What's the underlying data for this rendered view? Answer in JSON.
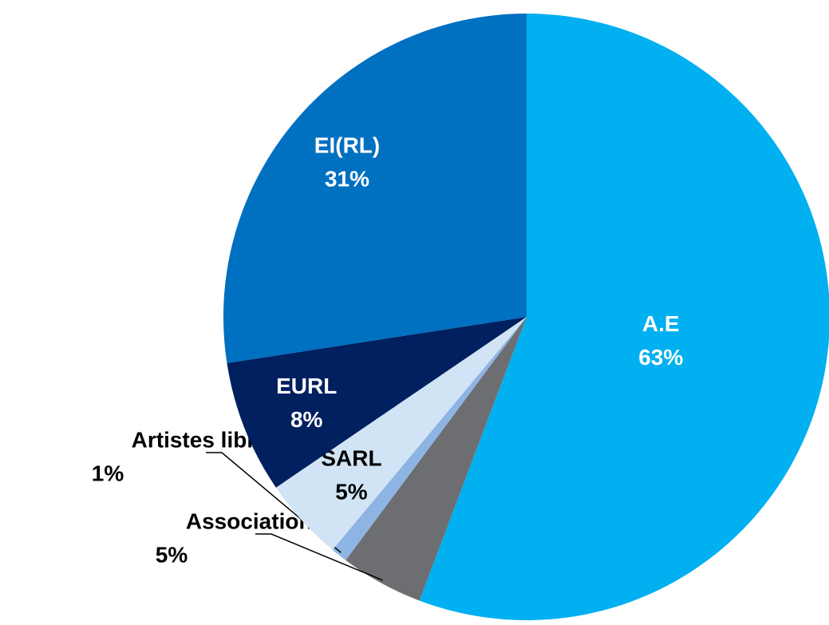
{
  "chart_data": {
    "type": "pie",
    "categories": [
      "A.E",
      "Associations",
      "Artistes libres",
      "SARL",
      "EURL",
      "EI(RL)"
    ],
    "values": [
      63,
      5,
      1,
      5,
      8,
      31
    ],
    "value_labels": [
      "63%",
      "5%",
      "1%",
      "5%",
      "8%",
      "31%"
    ],
    "colors": [
      "#00b0f0",
      "#6d6e71",
      "#8eb4e3",
      "#d0e4f5",
      "#002060",
      "#0070c0"
    ]
  }
}
